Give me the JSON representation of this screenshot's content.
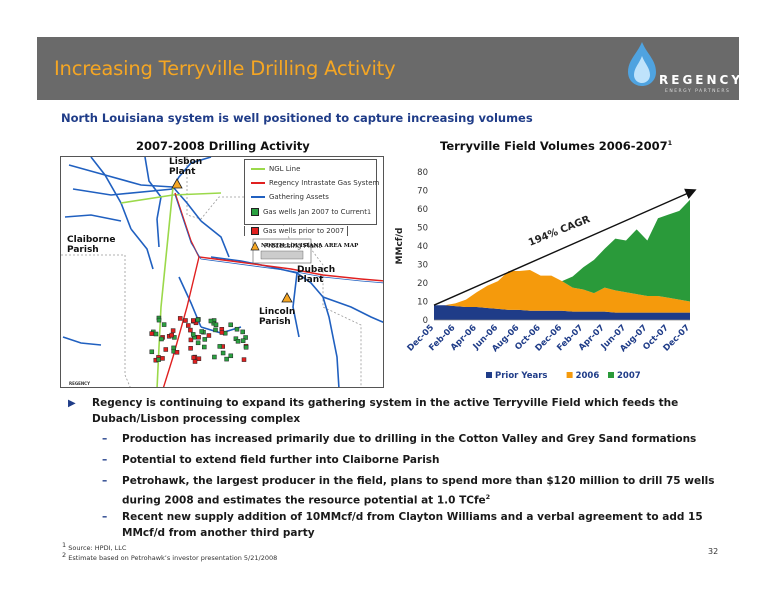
{
  "header": {
    "title": "Increasing Terryville Drilling Activity",
    "logo_text": "REGENCY",
    "logo_subtext": "ENERGY PARTNERS"
  },
  "subtitle": "North Louisiana system is well positioned to capture increasing volumes",
  "map": {
    "title": "2007-2008 Drilling Activity",
    "labels": {
      "lisbon": "Lisbon Plant",
      "claiborne": "Claiborne Parish",
      "dubach": "Dubach Plant",
      "lincoln": "Lincoln Parish",
      "area_map": "NORTH LOUISIANA AREA MAP",
      "map_logo": "REGENCY"
    },
    "legend": [
      {
        "label": "NGL Line",
        "type": "line",
        "color": "#9bd94a"
      },
      {
        "label": "Regency Intrastate Gas System",
        "type": "line",
        "color": "#e02020"
      },
      {
        "label": "Gathering Assets",
        "type": "line",
        "color": "#2060c0"
      },
      {
        "label": "Gas wells Jan 2007 to Current",
        "type": "square",
        "color": "#2aa040",
        "sup": "1"
      },
      {
        "label": "Gas wells prior to 2007",
        "type": "square",
        "color": "#e02020",
        "sup": "1"
      },
      {
        "label": "Processing Plant",
        "type": "triangle",
        "color": "#f5a623"
      }
    ]
  },
  "chart": {
    "title": "Terryville Field Volumes 2006-2007",
    "title_sup": "1",
    "annotation": "194% CAGR"
  },
  "chart_data": {
    "type": "area",
    "title": "Terryville Field Volumes 2006-2007",
    "ylabel": "MMcf/d",
    "ylim": [
      0,
      80
    ],
    "yticks": [
      0,
      10,
      20,
      30,
      40,
      50,
      60,
      70,
      80
    ],
    "x": [
      "Dec-05",
      "Jan-06",
      "Feb-06",
      "Mar-06",
      "Apr-06",
      "May-06",
      "Jun-06",
      "Jul-06",
      "Aug-06",
      "Sep-06",
      "Oct-06",
      "Nov-06",
      "Dec-06",
      "Jan-07",
      "Feb-07",
      "Mar-07",
      "Apr-07",
      "May-07",
      "Jun-07",
      "Jul-07",
      "Aug-07",
      "Sep-07",
      "Oct-07",
      "Nov-07",
      "Dec-07"
    ],
    "xtick_labels": [
      "Dec-05",
      "Feb-06",
      "Apr-06",
      "Jun-06",
      "Aug-06",
      "Oct-06",
      "Dec-06",
      "Feb-07",
      "Apr-07",
      "Jun-07",
      "Aug-07",
      "Oct-07",
      "Dec-07"
    ],
    "stacked": true,
    "series": [
      {
        "name": "Prior Years",
        "color": "#1f3c88",
        "values": [
          8,
          8,
          7.5,
          7,
          7,
          6.5,
          6,
          5.5,
          5.5,
          5,
          5,
          5,
          5,
          4.5,
          4.5,
          4.5,
          4.5,
          4,
          4,
          4,
          4,
          4,
          4,
          4,
          4
        ]
      },
      {
        "name": "2006",
        "color": "#f59a0c",
        "values": [
          0,
          0,
          1.5,
          4,
          8,
          12,
          15,
          21,
          21,
          22,
          19,
          19,
          16,
          13,
          12,
          10,
          13,
          12,
          11,
          10,
          9,
          9,
          8,
          7,
          6
        ]
      },
      {
        "name": "2007",
        "color": "#2a9a3a",
        "values": [
          0,
          0,
          0,
          0,
          0,
          0,
          0,
          0,
          0,
          0,
          0,
          0,
          0,
          6,
          12,
          18,
          21,
          28,
          28,
          35,
          30,
          42,
          45,
          48,
          55
        ]
      }
    ],
    "legend": "bottom",
    "annotation": "194% CAGR"
  },
  "bullets": {
    "main": "Regency is continuing to expand its gathering system in the active Terryville Field which feeds the Dubach/Lisbon processing complex",
    "subs": [
      "Production has increased primarily due to drilling in the Cotton Valley and Grey Sand formations",
      "Potential to extend field further into Claiborne Parish",
      "Petrohawk, the largest producer in the field, plans to spend more than $120 million to drill 75 wells during 2008 and estimates the resource potential at 1.0 TCfe",
      "Recent new supply addition of 10MMcf/d from Clayton Williams and a verbal agreement to add 15 MMcf/d from another third party"
    ],
    "sub3_sup": "2"
  },
  "footnotes": {
    "f1": "Source: HPDI, LLC",
    "f1_mark": "1",
    "f2": "Estimate based on Petrohawk’s investor presentation 5/21/2008",
    "f2_mark": "2"
  },
  "page_number": "32"
}
